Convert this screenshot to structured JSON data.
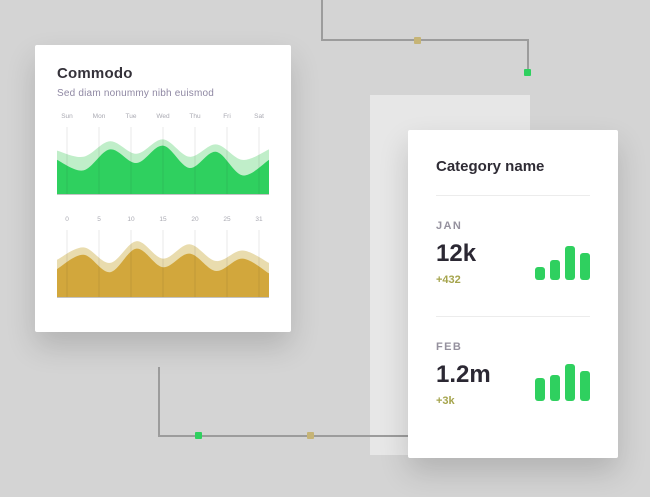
{
  "page": {
    "background": "#d4d4d4",
    "panel_color": "#e7e7e7",
    "accent_green": "#2fd05f",
    "accent_gold": "#d2a73c",
    "node_gold": "#c6b476",
    "connector_color": "#9c9c9c",
    "delta_color": "#a5a44c"
  },
  "left_card": {
    "title": "Commodo",
    "subtitle": "Sed diam nonummy nibh euismod"
  },
  "right_card": {
    "title": "Category name",
    "stats": [
      {
        "label": "JAN",
        "value": "12k",
        "delta": "+432"
      },
      {
        "label": "FEB",
        "value": "1.2m",
        "delta": "+3k"
      }
    ]
  },
  "chart_data": [
    {
      "type": "area",
      "title": "Commodo weekly area chart",
      "categories": [
        "Sun",
        "Mon",
        "Tue",
        "Wed",
        "Thu",
        "Fri",
        "Sat"
      ],
      "series": [
        {
          "name": "background-layer",
          "color": "#c0eec9",
          "values": [
            70,
            60,
            85,
            65,
            88,
            60,
            80,
            55,
            72
          ]
        },
        {
          "name": "foreground-layer",
          "color": "#2fd05f",
          "values": [
            55,
            38,
            72,
            50,
            78,
            42,
            68,
            30,
            55
          ]
        }
      ],
      "ylim": [
        0,
        100
      ],
      "grid": true,
      "legend": false
    },
    {
      "type": "area",
      "title": "Commodo monthly area chart",
      "categories": [
        "0",
        "5",
        "10",
        "15",
        "20",
        "25",
        "31"
      ],
      "series": [
        {
          "name": "background-layer",
          "color": "#e9dcae",
          "values": [
            60,
            80,
            55,
            90,
            62,
            85,
            58,
            75,
            55
          ]
        },
        {
          "name": "foreground-layer",
          "color": "#d2a73c",
          "values": [
            45,
            68,
            40,
            78,
            48,
            70,
            42,
            62,
            38
          ]
        }
      ],
      "ylim": [
        0,
        100
      ],
      "grid": true,
      "legend": false
    },
    {
      "type": "bar",
      "title": "JAN mini bar chart",
      "values": [
        13,
        20,
        34,
        27
      ],
      "color": "#2fd05f"
    },
    {
      "type": "bar",
      "title": "FEB mini bar chart",
      "values": [
        23,
        26,
        37,
        30
      ],
      "color": "#2fd05f"
    }
  ]
}
